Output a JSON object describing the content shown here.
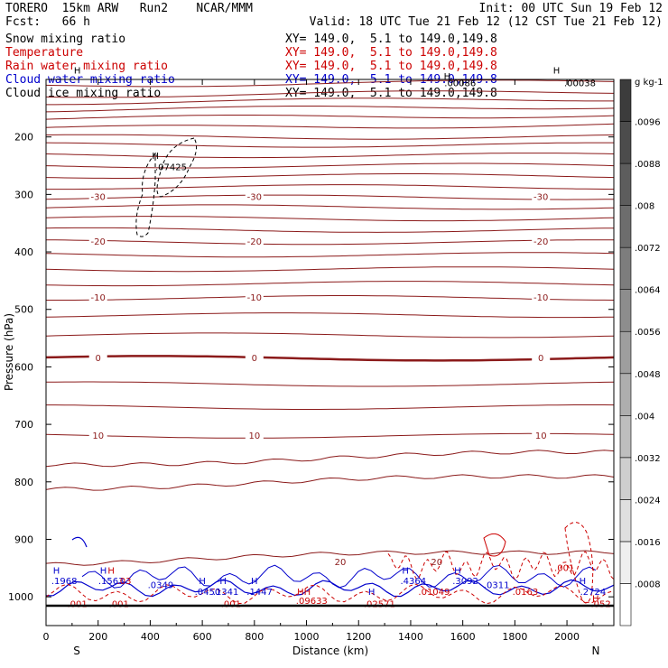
{
  "header": {
    "model": "TORERO",
    "resolution": "15km ARW",
    "run": "Run2",
    "org": "NCAR/MMM",
    "init": "Init: 00 UTC Sun 19 Feb 12",
    "fcst_label": "Fcst:",
    "fcst_value": "66 h",
    "valid": "Valid: 18 UTC Tue 21 Feb 12 (12 CST Tue 21 Feb 12)"
  },
  "fields": [
    {
      "name": "Snow mixing ratio",
      "color": "#000000",
      "xy": "XY= 149.0,  5.1 to 149.0,149.8"
    },
    {
      "name": "Temperature",
      "color": "#cc0000",
      "xy": "XY= 149.0,  5.1 to 149.0,149.8"
    },
    {
      "name": "Rain water mixing ratio",
      "color": "#cc0000",
      "xy": "XY= 149.0,  5.1 to 149.0,149.8"
    },
    {
      "name": "Cloud water mixing ratio",
      "color": "#0000cc",
      "xy": "XY= 149.0,  5.1 to 149.0,149.8"
    },
    {
      "name": "Cloud ice mixing ratio",
      "color": "#000000",
      "xy": "XY= 149.0,  5.1 to 149.0,149.8"
    }
  ],
  "chart_data": {
    "type": "contour",
    "xlabel": "Distance (km)",
    "ylabel": "Pressure (hPa)",
    "xlim": [
      0,
      2180
    ],
    "ylim": [
      1050,
      100
    ],
    "x_ticks": [
      0,
      200,
      400,
      600,
      800,
      1000,
      1200,
      1400,
      1600,
      1800,
      2000
    ],
    "y_ticks": [
      200,
      300,
      400,
      500,
      600,
      700,
      800,
      900,
      1000
    ],
    "x_end_labels": {
      "left": "S",
      "right": "N"
    },
    "temperature_contours": [
      {
        "p": 110
      },
      {
        "p": 128
      },
      {
        "p": 140
      },
      {
        "p": 153
      },
      {
        "p": 168
      },
      {
        "p": 185
      },
      {
        "p": 200
      },
      {
        "p": 214
      },
      {
        "p": 232
      },
      {
        "p": 250
      },
      {
        "p": 268
      },
      {
        "p": 287
      },
      {
        "p": 305,
        "label": "-30"
      },
      {
        "p": 322
      },
      {
        "p": 342
      },
      {
        "p": 362
      },
      {
        "p": 383,
        "label": "-20"
      },
      {
        "p": 405
      },
      {
        "p": 430
      },
      {
        "p": 455
      },
      {
        "p": 480,
        "label": "-10"
      },
      {
        "p": 510
      },
      {
        "p": 545
      },
      {
        "p": 585,
        "label": "0",
        "bold": true
      },
      {
        "p": 630
      },
      {
        "p": 670
      },
      {
        "p": 720,
        "label": "10"
      },
      {
        "p": 770
      },
      {
        "p": 810
      },
      {
        "p": 940,
        "label": "20"
      }
    ],
    "colorbar": {
      "unit": "g kg-1",
      "levels": [
        ".0008",
        ".0016",
        ".0024",
        ".0032",
        ".004",
        ".0048",
        ".0056",
        ".0064",
        ".0072",
        ".008",
        ".0088",
        ".0096"
      ]
    },
    "extrema_labels": [
      {
        "text": "H",
        "x": 120,
        "p": 90,
        "color": "#000000"
      },
      {
        "text": "H",
        "x": 1960,
        "p": 90,
        "color": "#000000"
      },
      {
        "text": ".00038",
        "x": 2050,
        "p": 112,
        "color": "#000000"
      },
      {
        "text": ".00086",
        "x": 1590,
        "p": 112,
        "color": "#000000"
      },
      {
        "text": "H",
        "x": 1540,
        "p": 100,
        "color": "#000000"
      },
      {
        "text": "H",
        "x": 420,
        "p": 238,
        "color": "#000000"
      },
      {
        "text": ".07425",
        "x": 480,
        "p": 258,
        "color": "#000000"
      },
      {
        "text": "H",
        "x": 40,
        "p": 960,
        "color": "#0000cc"
      },
      {
        "text": ".1968",
        "x": 70,
        "p": 978,
        "color": "#0000cc"
      },
      {
        "text": "H",
        "x": 220,
        "p": 960,
        "color": "#0000cc"
      },
      {
        "text": ".1563",
        "x": 250,
        "p": 978,
        "color": "#0000cc"
      },
      {
        "text": "H",
        "x": 250,
        "p": 960,
        "color": "#cc0000"
      },
      {
        "text": ".03",
        "x": 300,
        "p": 978,
        "color": "#cc0000"
      },
      {
        "text": ".0349",
        "x": 440,
        "p": 985,
        "color": "#0000cc"
      },
      {
        "text": "H",
        "x": 600,
        "p": 978,
        "color": "#0000cc"
      },
      {
        "text": "H",
        "x": 680,
        "p": 978,
        "color": "#0000cc"
      },
      {
        "text": "H",
        "x": 800,
        "p": 978,
        "color": "#0000cc"
      },
      {
        "text": ".0450",
        "x": 620,
        "p": 997,
        "color": "#0000cc"
      },
      {
        "text": ".1341",
        "x": 690,
        "p": 997,
        "color": "#0000cc"
      },
      {
        "text": ".1447",
        "x": 820,
        "p": 997,
        "color": "#0000cc"
      },
      {
        "text": "HH",
        "x": 990,
        "p": 997,
        "color": "#cc0000"
      },
      {
        "text": ".09633",
        "x": 1020,
        "p": 1012,
        "color": "#cc0000"
      },
      {
        "text": "H",
        "x": 1250,
        "p": 997,
        "color": "#0000cc"
      },
      {
        "text": ".02571",
        "x": 1280,
        "p": 1018,
        "color": "#cc0000"
      },
      {
        "text": "H",
        "x": 1380,
        "p": 960,
        "color": "#0000cc"
      },
      {
        "text": ".4364",
        "x": 1410,
        "p": 978,
        "color": "#0000cc"
      },
      {
        "text": ".01049",
        "x": 1490,
        "p": 997,
        "color": "#cc0000"
      },
      {
        "text": "H",
        "x": 1580,
        "p": 960,
        "color": "#0000cc"
      },
      {
        "text": ".3092",
        "x": 1610,
        "p": 978,
        "color": "#0000cc"
      },
      {
        "text": ".0163",
        "x": 1840,
        "p": 997,
        "color": "#cc0000"
      },
      {
        "text": ".001",
        "x": 1990,
        "p": 955,
        "color": "#cc0000"
      },
      {
        "text": "H",
        "x": 2060,
        "p": 978,
        "color": "#0000cc"
      },
      {
        "text": ".2724",
        "x": 2100,
        "p": 997,
        "color": "#0000cc"
      },
      {
        "text": "H",
        "x": 2110,
        "p": 1008,
        "color": "#cc0000"
      },
      {
        "text": ".052",
        "x": 2130,
        "p": 1018,
        "color": "#cc0000"
      },
      {
        "text": ".001",
        "x": 120,
        "p": 1018,
        "color": "#cc0000"
      },
      {
        "text": ".001",
        "x": 280,
        "p": 1018,
        "color": "#cc0000"
      },
      {
        "text": ".001",
        "x": 710,
        "p": 1018,
        "color": "#cc0000"
      },
      {
        "text": ".0311",
        "x": 1730,
        "p": 985,
        "color": "#0000cc"
      }
    ]
  }
}
